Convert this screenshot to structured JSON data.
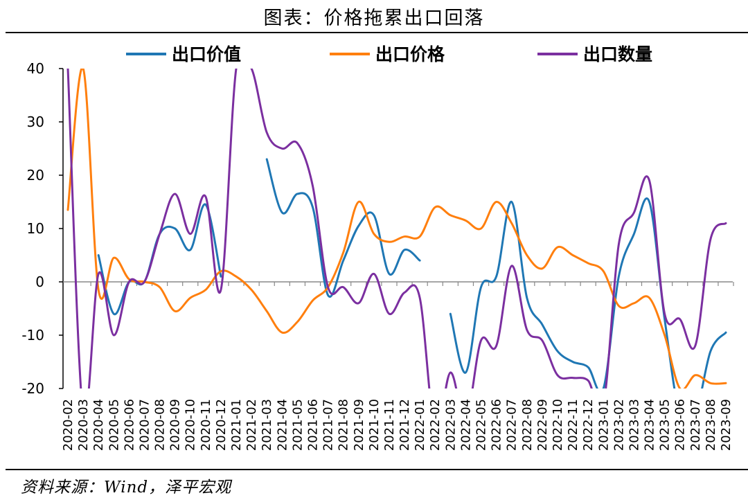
{
  "title": "图表：价格拖累出口回落",
  "source": "资料来源：Wind，泽平宏观",
  "chart_data": {
    "type": "line",
    "title": "图表：价格拖累出口回落",
    "ylim": [
      -20,
      40
    ],
    "yticks": [
      40,
      30,
      20,
      10,
      0,
      -10,
      -20
    ],
    "grid": false,
    "legend_position": "top",
    "x": [
      "2020-02",
      "2020-03",
      "2020-04",
      "2020-05",
      "2020-06",
      "2020-07",
      "2020-08",
      "2020-09",
      "2020-10",
      "2020-11",
      "2020-12",
      "2021-01",
      "2021-02",
      "2021-03",
      "2021-04",
      "2021-05",
      "2021-06",
      "2021-07",
      "2021-08",
      "2021-09",
      "2021-10",
      "2021-11",
      "2021-12",
      "2022-01",
      "2022-02",
      "2022-03",
      "2022-04",
      "2022-05",
      "2022-06",
      "2022-07",
      "2022-08",
      "2022-09",
      "2022-10",
      "2022-11",
      "2022-12",
      "2023-01",
      "2023-02",
      "2023-03",
      "2023-04",
      "2023-05",
      "2023-06",
      "2023-07",
      "2023-08",
      "2023-09"
    ],
    "series": [
      {
        "name": "出口价值",
        "color": "#1f77b4",
        "values": [
          null,
          null,
          5,
          -6,
          0,
          0,
          9,
          10,
          6,
          14.5,
          1,
          null,
          null,
          23,
          13,
          16.5,
          14,
          -2.5,
          4,
          10.5,
          12.5,
          1.5,
          6,
          4,
          null,
          -6,
          -17,
          -1,
          1,
          15,
          -3,
          -8,
          -13,
          -15,
          -16,
          -20,
          1,
          9,
          15,
          -7,
          -25,
          -25,
          -13,
          -9.5
        ]
      },
      {
        "name": "出口价格",
        "color": "#ff7f0e",
        "values": [
          13.5,
          40,
          -1.5,
          4.5,
          0.5,
          0,
          -1,
          -5.5,
          -3,
          -1.5,
          2,
          1,
          -1.5,
          -5.5,
          -9.5,
          -7.5,
          -3.5,
          -1,
          5.5,
          15,
          9,
          7.5,
          8.5,
          8.5,
          14,
          12.5,
          11.5,
          10,
          15,
          11,
          5,
          2.5,
          6.5,
          5,
          3.5,
          2,
          -4.5,
          -4,
          -3,
          -10,
          -20,
          -17.5,
          -19,
          -19
        ]
      },
      {
        "name": "出口数量",
        "color": "#7b2fa0",
        "values": [
          40,
          -25,
          1.5,
          -10,
          0,
          0,
          9,
          16.5,
          9,
          16,
          -1.5,
          40,
          40,
          28,
          25,
          26,
          18,
          -1,
          -1,
          -4,
          1.5,
          -6,
          -2,
          -3,
          -28,
          -17,
          -26,
          -11,
          -12,
          3,
          -9,
          -11,
          -17.5,
          -18,
          -18.5,
          -23,
          7,
          13,
          19,
          -6,
          -7,
          -12,
          8,
          11
        ]
      }
    ]
  },
  "legend": [
    {
      "label": "出口价值",
      "color": "#1f77b4"
    },
    {
      "label": "出口价格",
      "color": "#ff7f0e"
    },
    {
      "label": "出口数量",
      "color": "#7b2fa0"
    }
  ]
}
